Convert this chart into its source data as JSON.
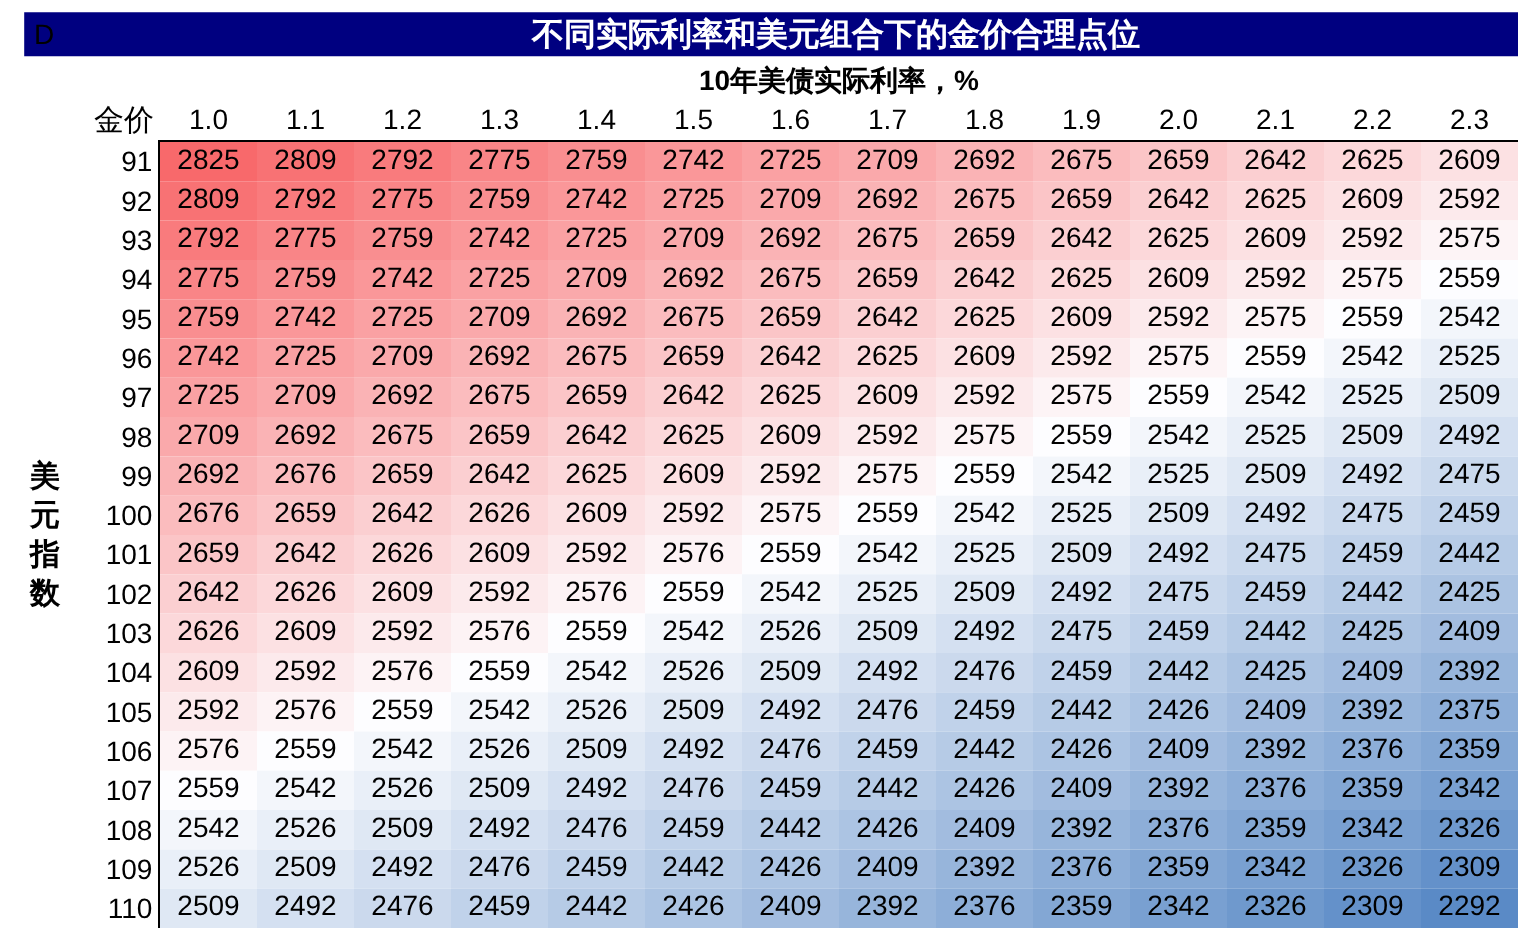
{
  "chart_data": {
    "type": "heatmap",
    "title": "不同实际利率和美元组合下的金价合理点位",
    "xlabel": "10年美债实际利率，%",
    "ylabel": "美元指数",
    "annotations": [
      "D",
      "金价"
    ],
    "categories": [
      "1.0",
      "1.1",
      "1.2",
      "1.3",
      "1.4",
      "1.5",
      "1.6",
      "1.7",
      "1.8",
      "1.9",
      "2.0",
      "2.1",
      "2.2",
      "2.3"
    ],
    "y_categories": [
      "91",
      "92",
      "93",
      "94",
      "95",
      "96",
      "97",
      "98",
      "99",
      "100",
      "101",
      "102",
      "103",
      "104",
      "105",
      "106",
      "107",
      "108",
      "109",
      "110"
    ],
    "cells": [
      [
        2825,
        2809,
        2792,
        2775,
        2759,
        2742,
        2725,
        2709,
        2692,
        2675,
        2659,
        2642,
        2625,
        2609
      ],
      [
        2809,
        2792,
        2775,
        2759,
        2742,
        2725,
        2709,
        2692,
        2675,
        2659,
        2642,
        2625,
        2609,
        2592
      ],
      [
        2792,
        2775,
        2759,
        2742,
        2725,
        2709,
        2692,
        2675,
        2659,
        2642,
        2625,
        2609,
        2592,
        2575
      ],
      [
        2775,
        2759,
        2742,
        2725,
        2709,
        2692,
        2675,
        2659,
        2642,
        2625,
        2609,
        2592,
        2575,
        2559
      ],
      [
        2759,
        2742,
        2725,
        2709,
        2692,
        2675,
        2659,
        2642,
        2625,
        2609,
        2592,
        2575,
        2559,
        2542
      ],
      [
        2742,
        2725,
        2709,
        2692,
        2675,
        2659,
        2642,
        2625,
        2609,
        2592,
        2575,
        2559,
        2542,
        2525
      ],
      [
        2725,
        2709,
        2692,
        2675,
        2659,
        2642,
        2625,
        2609,
        2592,
        2575,
        2559,
        2542,
        2525,
        2509
      ],
      [
        2709,
        2692,
        2675,
        2659,
        2642,
        2625,
        2609,
        2592,
        2575,
        2559,
        2542,
        2525,
        2509,
        2492
      ],
      [
        2692,
        2676,
        2659,
        2642,
        2625,
        2609,
        2592,
        2575,
        2559,
        2542,
        2525,
        2509,
        2492,
        2475
      ],
      [
        2676,
        2659,
        2642,
        2626,
        2609,
        2592,
        2575,
        2559,
        2542,
        2525,
        2509,
        2492,
        2475,
        2459
      ],
      [
        2659,
        2642,
        2626,
        2609,
        2592,
        2576,
        2559,
        2542,
        2525,
        2509,
        2492,
        2475,
        2459,
        2442
      ],
      [
        2642,
        2626,
        2609,
        2592,
        2576,
        2559,
        2542,
        2525,
        2509,
        2492,
        2475,
        2459,
        2442,
        2425
      ],
      [
        2626,
        2609,
        2592,
        2576,
        2559,
        2542,
        2526,
        2509,
        2492,
        2475,
        2459,
        2442,
        2425,
        2409
      ],
      [
        2609,
        2592,
        2576,
        2559,
        2542,
        2526,
        2509,
        2492,
        2476,
        2459,
        2442,
        2425,
        2409,
        2392
      ],
      [
        2592,
        2576,
        2559,
        2542,
        2526,
        2509,
        2492,
        2476,
        2459,
        2442,
        2426,
        2409,
        2392,
        2375
      ],
      [
        2576,
        2559,
        2542,
        2526,
        2509,
        2492,
        2476,
        2459,
        2442,
        2426,
        2409,
        2392,
        2376,
        2359
      ],
      [
        2559,
        2542,
        2526,
        2509,
        2492,
        2476,
        2459,
        2442,
        2426,
        2409,
        2392,
        2376,
        2359,
        2342
      ],
      [
        2542,
        2526,
        2509,
        2492,
        2476,
        2459,
        2442,
        2426,
        2409,
        2392,
        2376,
        2359,
        2342,
        2326
      ],
      [
        2526,
        2509,
        2492,
        2476,
        2459,
        2442,
        2426,
        2409,
        2392,
        2376,
        2359,
        2342,
        2326,
        2309
      ],
      [
        2509,
        2492,
        2476,
        2459,
        2442,
        2426,
        2409,
        2392,
        2376,
        2359,
        2342,
        2326,
        2309,
        2292
      ]
    ],
    "data_labels": true,
    "grid": false
  }
}
